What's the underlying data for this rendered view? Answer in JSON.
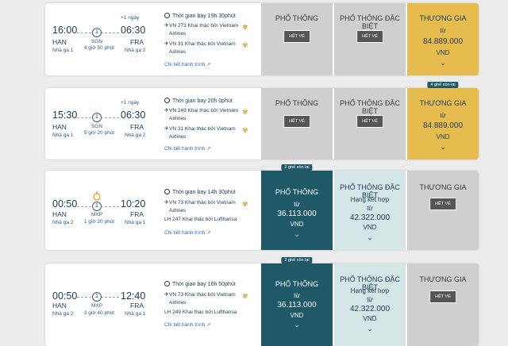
{
  "flights": [
    {
      "dep_time": "16:00",
      "arr_time": "06:30",
      "plus_day": "+1 ngày",
      "dep_code": "HAN",
      "arr_code": "FRA",
      "dep_terminal": "Nhà ga 1",
      "arr_terminal": "Nhà ga 2",
      "stops": "1",
      "stop_code": "SGN",
      "stop_duration": "4 giờ 50 phút",
      "flight_time": "Thời gian bay 19h 30phút",
      "legs": [
        {
          "line1": "VN 273 Khai thác bởi Vietnam",
          "line2": "Airlines"
        },
        {
          "line1": "VN 31 Khai thác bởi Vietnam",
          "line2": "Airlines"
        }
      ],
      "details": "Chi tiết hành trình",
      "fares": [
        {
          "name": "PHỔ THÔNG",
          "status": "HẾT VÉ"
        },
        {
          "name": "PHỔ THÔNG ĐẶC BIỆT",
          "status": "HẾT VÉ"
        },
        {
          "name": "THƯƠNG GIA",
          "from": "từ",
          "price": "84.889.000",
          "currency": "VND"
        }
      ]
    },
    {
      "dep_time": "15:30",
      "arr_time": "06:30",
      "plus_day": "+1 ngày",
      "dep_code": "HAN",
      "arr_code": "FRA",
      "dep_terminal": "Nhà ga 1",
      "arr_terminal": "Nhà ga 2",
      "stops": "1",
      "stop_code": "SGN",
      "stop_duration": "5 giờ 20 phút",
      "flight_time": "Thời gian bay 20h 0phút",
      "legs": [
        {
          "line1": "VN 249 Khai thác bởi Vietnam",
          "line2": "Airlines"
        },
        {
          "line1": "VN 31 Khai thác bởi Vietnam",
          "line2": "Airlines"
        }
      ],
      "details": "Chi tiết hành trình",
      "fares": [
        {
          "name": "PHỔ THÔNG",
          "status": "HẾT VÉ"
        },
        {
          "name": "PHỔ THÔNG ĐẶC BIỆT",
          "status": "HẾT VÉ"
        },
        {
          "name": "THƯƠNG GIA",
          "from": "từ",
          "price": "84.889.000",
          "currency": "VND",
          "badge": "4 ghế còn lại"
        }
      ]
    },
    {
      "dep_time": "00:50",
      "arr_time": "10:20",
      "dep_code": "HAN",
      "arr_code": "FRA",
      "dep_terminal": "Nhà ga 2",
      "arr_terminal": "Nhà ga 1",
      "stops": "1",
      "stop_code": "MXP",
      "stop_duration": "1 giờ 20 phút",
      "flight_time": "Thời gian bay 14h 30phút",
      "legs": [
        {
          "line1": "VN 73 Khai thác bởi Vietnam",
          "line2": "Airlines"
        },
        {
          "line1": "LH 247 Khai thác bởi Lufthansa",
          "line2": ""
        }
      ],
      "details": "Chi tiết hành trình",
      "fares": [
        {
          "name": "PHỔ THÔNG",
          "from": "từ",
          "price": "36.113.000",
          "currency": "VND",
          "badge": "2 ghế còn lại"
        },
        {
          "name": "PHỔ THÔNG ĐẶC BIỆT",
          "combo": "Hạng kết hợp",
          "from": "từ",
          "price": "42.322.000",
          "currency": "VND"
        },
        {
          "name": "THƯƠNG GIA",
          "status": "HẾT VÉ"
        }
      ]
    },
    {
      "dep_time": "00:50",
      "arr_time": "12:40",
      "dep_code": "HAN",
      "arr_code": "FRA",
      "dep_terminal": "Nhà ga 2",
      "arr_terminal": "Nhà ga 1",
      "stops": "1",
      "stop_code": "MXP",
      "stop_duration": "3 giờ 40 phút",
      "flight_time": "Thời gian bay 16h 50phút",
      "legs": [
        {
          "line1": "VN 73 Khai thác bởi Vietnam",
          "line2": "Airlines"
        },
        {
          "line1": "LH 249 Khai thác bởi Lufthansa",
          "line2": ""
        }
      ],
      "details": "Chi tiết hành trình",
      "fares": [
        {
          "name": "PHỔ THÔNG",
          "from": "từ",
          "price": "36.113.000",
          "currency": "VND",
          "badge": "2 ghế còn lại"
        },
        {
          "name": "PHỔ THÔNG ĐẶC BIỆT",
          "combo": "Hạng kết hợp",
          "from": "từ",
          "price": "42.322.000",
          "currency": "VND"
        },
        {
          "name": "THƯƠNG GIA",
          "status": "HẾT VÉ"
        }
      ]
    }
  ]
}
